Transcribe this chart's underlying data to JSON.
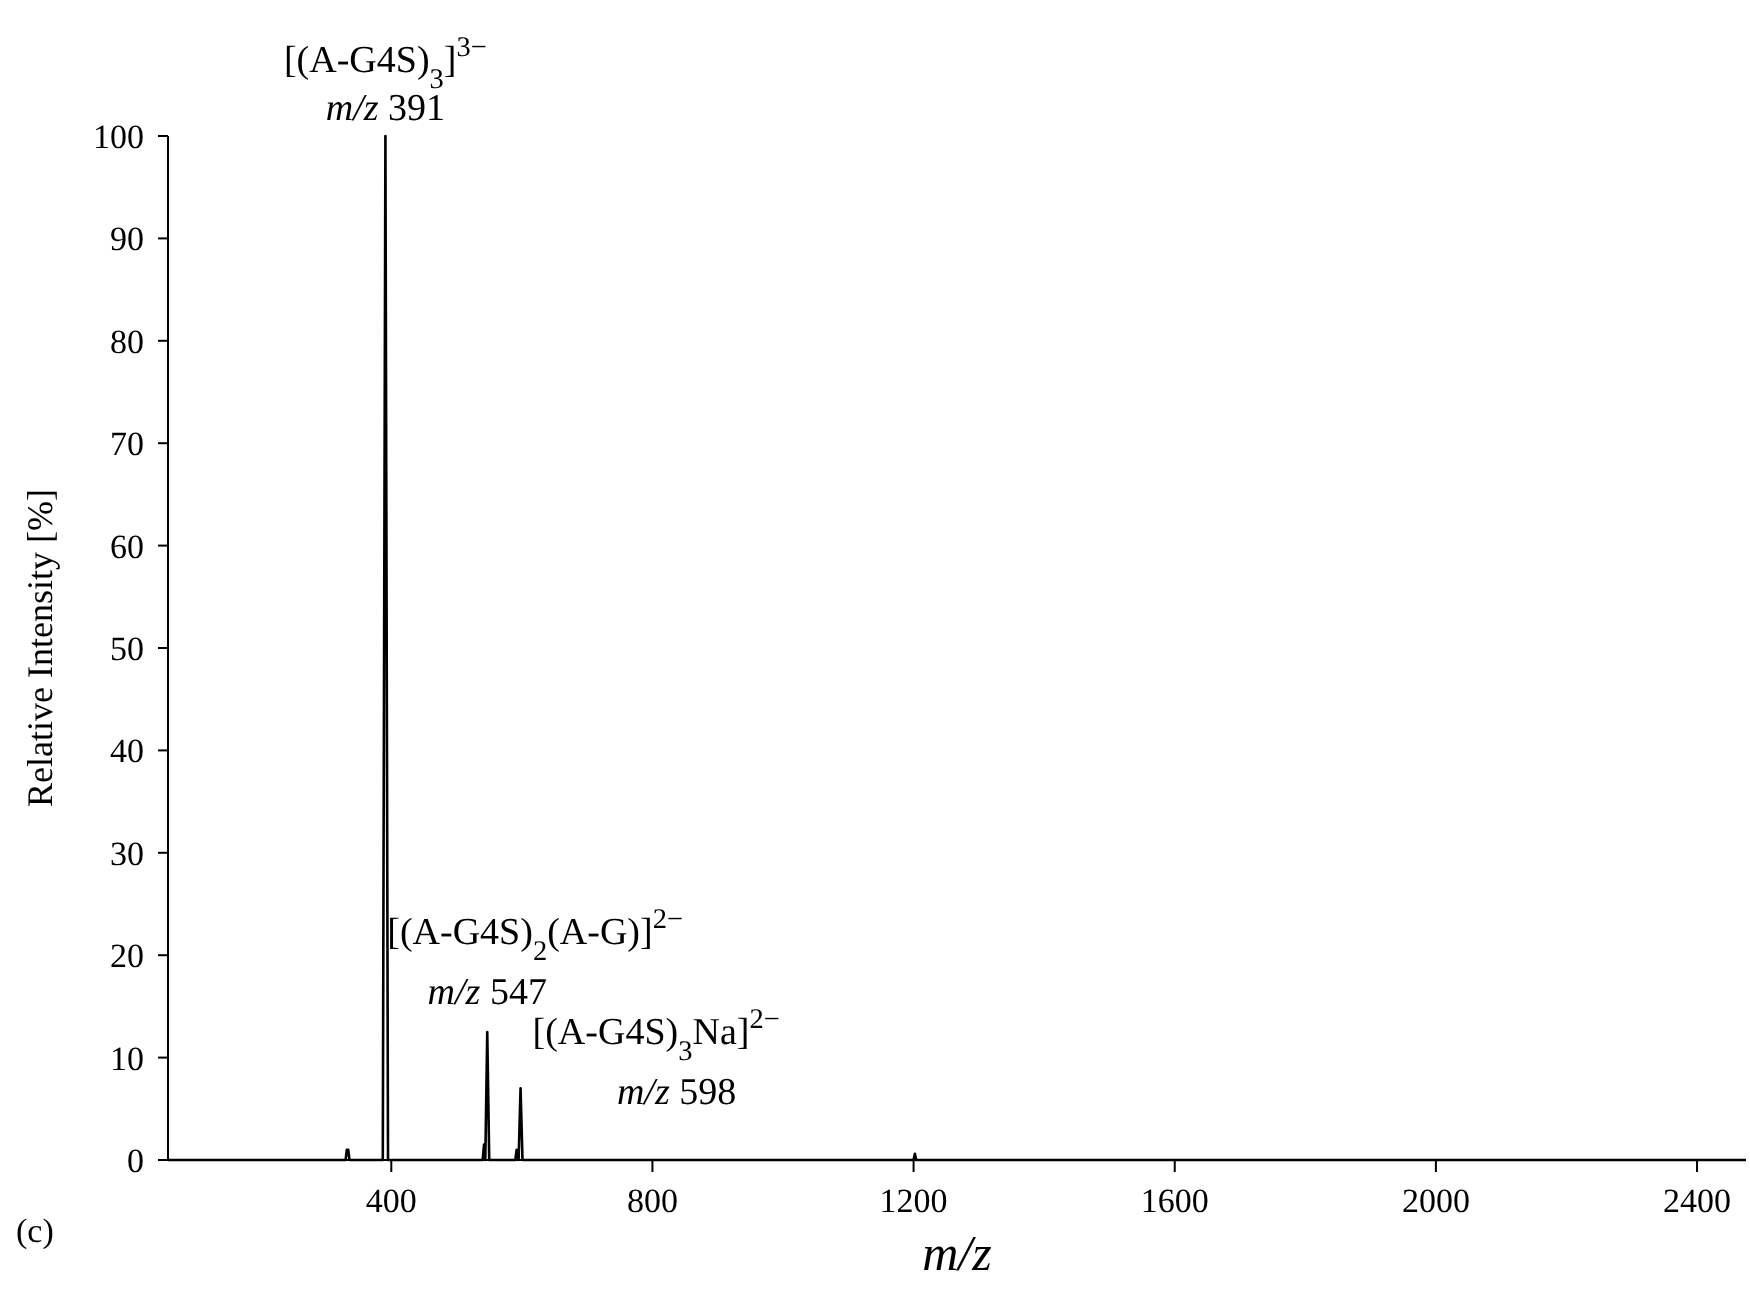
{
  "chart_data": {
    "type": "line",
    "xlabel": "m/z",
    "ylabel": "Relative Intensity [%]",
    "xlim": [
      58,
      2475
    ],
    "xticks": [
      400,
      800,
      1200,
      1600,
      2000,
      2400
    ],
    "ylim": [
      0,
      100
    ],
    "yticks": [
      0,
      10,
      20,
      30,
      40,
      50,
      60,
      70,
      80,
      90,
      100
    ],
    "grid": false,
    "marker": "none",
    "line_style": "solid",
    "series": [
      {
        "color": "#000000",
        "x": [
          58,
          330,
          332,
          334,
          336,
          384,
          387,
          391,
          395,
          398,
          540,
          542,
          544,
          547,
          550,
          552,
          590,
          592,
          595,
          598,
          601,
          604,
          1200,
          1202,
          1204,
          2475
        ],
        "values": [
          0,
          0,
          1,
          1,
          0,
          0,
          0,
          100,
          0,
          0,
          0,
          1.5,
          0,
          12.5,
          0,
          0,
          0,
          1,
          0,
          7,
          0,
          0,
          0,
          0.6,
          0,
          0
        ]
      }
    ],
    "annotations": [
      {
        "text": "[(A-G4S)$_{3}$]$^{3−}$",
        "x": 391,
        "y": 100
      },
      {
        "text": "m/z 391",
        "x": 391,
        "y": 100
      },
      {
        "text": "[(A-G4S)$_{2}$(A-G)]$^{2−}$",
        "x": 547,
        "y": 12.5
      },
      {
        "text": "m/z 547",
        "x": 547,
        "y": 12.5
      },
      {
        "text": "[(A-G4S)$_{3}$Na]$^{2−}$",
        "x": 598,
        "y": 7
      },
      {
        "text": "m/z 598",
        "x": 598,
        "y": 7
      },
      "(c)"
    ]
  }
}
